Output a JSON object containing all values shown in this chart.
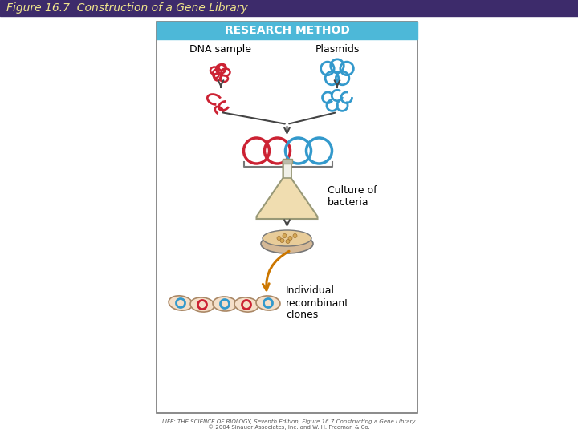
{
  "title": "Figure 16.7  Construction of a Gene Library",
  "title_color": "#f0e68c",
  "title_bg": "#3d2b6b",
  "title_fontsize": 11,
  "research_method_text": "RESEARCH METHOD",
  "research_method_bg": "#4db8d8",
  "research_method_color": "#ffffff",
  "dna_sample_label": "DNA sample",
  "plasmids_label": "Plasmids",
  "culture_label": "Culture of\nbacteria",
  "individual_label": "Individual\nrecombinant\nclones",
  "footer_line1": "LIFE: THE SCIENCE OF BIOLOGY, Seventh Edition, Figure 16.7 Constructing a Gene Library",
  "footer_line2": "© 2004 Sinauer Associates, Inc. and W. H. Freeman & Co.",
  "bg_color": "#ffffff",
  "box_border": "#777777",
  "red_color": "#cc2233",
  "blue_color": "#3399cc",
  "arrow_color": "#444444",
  "flask_fill": "#f0ddb0",
  "flask_edge": "#999977",
  "plate_outer": "#d4b896",
  "plate_inner": "#e8cc99",
  "clone_bg": "#f5dfc8",
  "brown_arrow": "#cc7700",
  "neck_color": "#ccccaa"
}
